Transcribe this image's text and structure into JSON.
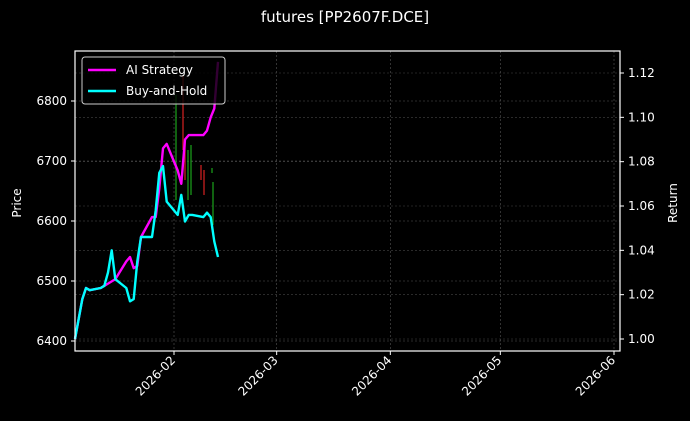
{
  "chart_data": {
    "type": "line",
    "title": "futures [PP2607F.DCE]",
    "xlabel": "",
    "ylabel": "Price",
    "y2label": "Return",
    "x_ticks": [
      "2026-02",
      "2026-03",
      "2026-04",
      "2026-05",
      "2026-06"
    ],
    "y_ticks": [
      6400,
      6500,
      6600,
      6700,
      6800
    ],
    "y2_ticks": [
      "1.00",
      "1.02",
      "1.04",
      "1.06",
      "1.08",
      "1.10",
      "1.12"
    ],
    "ylim": [
      6335,
      6885
    ],
    "y2lim": [
      0.993,
      1.129
    ],
    "grid": true,
    "legend_position": "upper left",
    "series": [
      {
        "name": "AI Strategy",
        "color": "#ff00ff",
        "axis": "right",
        "x": [
          "2026-01-05",
          "2026-01-07",
          "2026-01-08",
          "2026-01-09",
          "2026-01-12",
          "2026-01-13",
          "2026-01-14",
          "2026-01-15",
          "2026-01-16",
          "2026-01-19",
          "2026-01-20",
          "2026-01-21",
          "2026-01-22",
          "2026-01-23",
          "2026-01-26",
          "2026-01-27",
          "2026-01-28",
          "2026-01-29",
          "2026-01-30",
          "2026-02-02",
          "2026-02-03",
          "2026-02-04",
          "2026-02-05",
          "2026-02-06",
          "2026-02-09",
          "2026-02-10",
          "2026-02-11",
          "2026-02-12",
          "2026-02-13"
        ],
        "values": [
          1.0,
          1.018,
          1.023,
          1.022,
          1.023,
          1.024,
          1.025,
          1.026,
          1.027,
          1.035,
          1.037,
          1.032,
          1.033,
          1.046,
          1.055,
          1.055,
          1.068,
          1.086,
          1.088,
          1.076,
          1.07,
          1.09,
          1.092,
          1.092,
          1.092,
          1.094,
          1.1,
          1.104,
          1.125
        ]
      },
      {
        "name": "Buy-and-Hold",
        "color": "#00ffff",
        "axis": "right",
        "x": [
          "2026-01-05",
          "2026-01-07",
          "2026-01-08",
          "2026-01-09",
          "2026-01-12",
          "2026-01-13",
          "2026-01-14",
          "2026-01-15",
          "2026-01-16",
          "2026-01-19",
          "2026-01-20",
          "2026-01-21",
          "2026-01-22",
          "2026-01-23",
          "2026-01-26",
          "2026-01-27",
          "2026-01-28",
          "2026-01-29",
          "2026-01-30",
          "2026-02-02",
          "2026-02-03",
          "2026-02-04",
          "2026-02-05",
          "2026-02-06",
          "2026-02-09",
          "2026-02-10",
          "2026-02-11",
          "2026-02-12",
          "2026-02-13"
        ],
        "values": [
          1.0,
          1.018,
          1.023,
          1.022,
          1.023,
          1.024,
          1.03,
          1.04,
          1.027,
          1.023,
          1.017,
          1.018,
          1.035,
          1.046,
          1.046,
          1.058,
          1.075,
          1.078,
          1.062,
          1.056,
          1.065,
          1.053,
          1.056,
          1.056,
          1.055,
          1.057,
          1.055,
          1.044,
          1.037
        ]
      }
    ],
    "candles_note": "faint red/green price bars on left axis, approx range 6570-6860 around early-mid Feb 2026"
  },
  "legend": {
    "items": [
      {
        "label": "AI Strategy",
        "color": "#ff00ff"
      },
      {
        "label": "Buy-and-Hold",
        "color": "#00ffff"
      }
    ]
  }
}
